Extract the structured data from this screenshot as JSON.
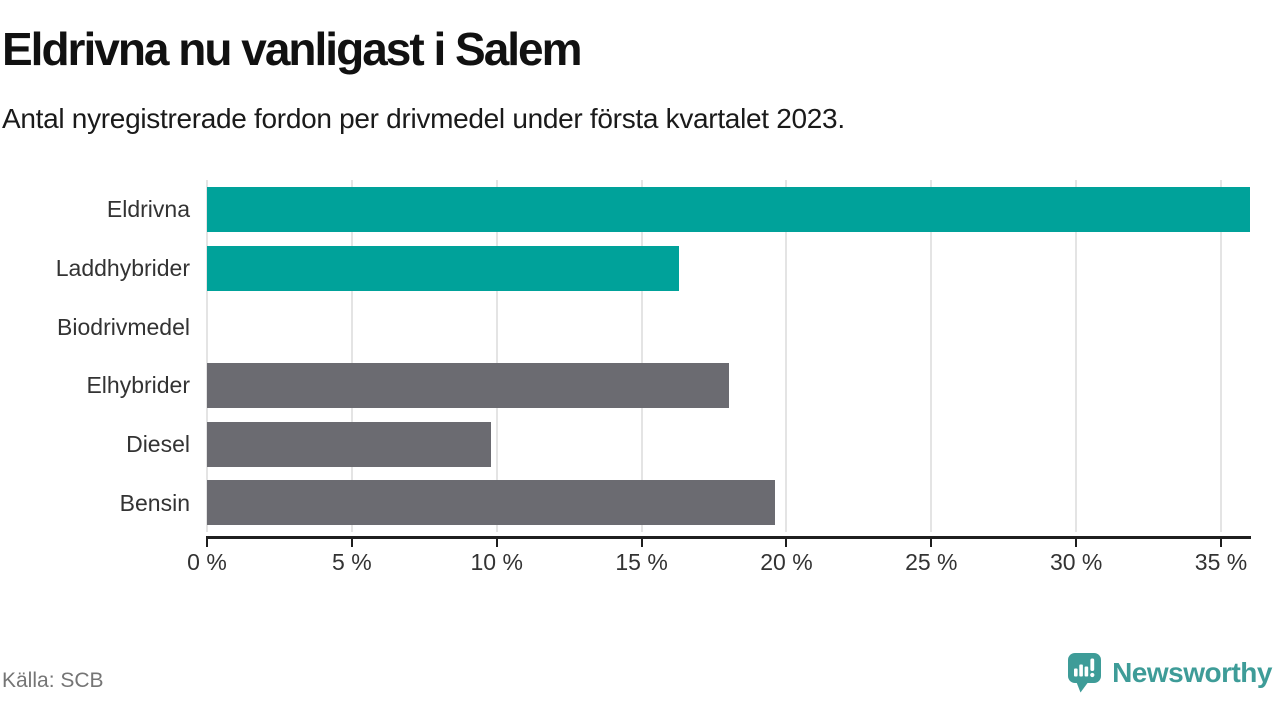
{
  "header": {
    "title": "Eldrivna nu vanligast i Salem",
    "subtitle": "Antal nyregistrerade fordon per drivmedel under första kvartalet 2023."
  },
  "chart_data": {
    "type": "bar",
    "orientation": "horizontal",
    "title": "Eldrivna nu vanligast i Salem",
    "subtitle": "Antal nyregistrerade fordon per drivmedel under första kvartalet 2023.",
    "categories": [
      "Eldrivna",
      "Laddhybrider",
      "Biodrivmedel",
      "Elhybrider",
      "Diesel",
      "Bensin"
    ],
    "values": [
      36.0,
      16.3,
      0,
      18.0,
      9.8,
      19.6
    ],
    "unit": "%",
    "bar_color_roles": [
      "highlight",
      "highlight",
      "default",
      "default",
      "default",
      "default"
    ],
    "colors": {
      "highlight": "#00A29A",
      "default": "#6B6B71",
      "gridline": "#E4E4E4",
      "axis": "#1F1F1F",
      "label_text": "#333333"
    },
    "xlim": [
      0,
      36
    ],
    "x_ticks": [
      0,
      5,
      10,
      15,
      20,
      25,
      30,
      35
    ],
    "x_tick_labels": [
      "0 %",
      "5 %",
      "10 %",
      "15 %",
      "20 %",
      "25 %",
      "30 %",
      "35 %"
    ],
    "grid": true,
    "legend": false
  },
  "footer": {
    "source": "Källa: SCB",
    "brand": "Newsworthy",
    "brand_color": "#3E9C98"
  }
}
